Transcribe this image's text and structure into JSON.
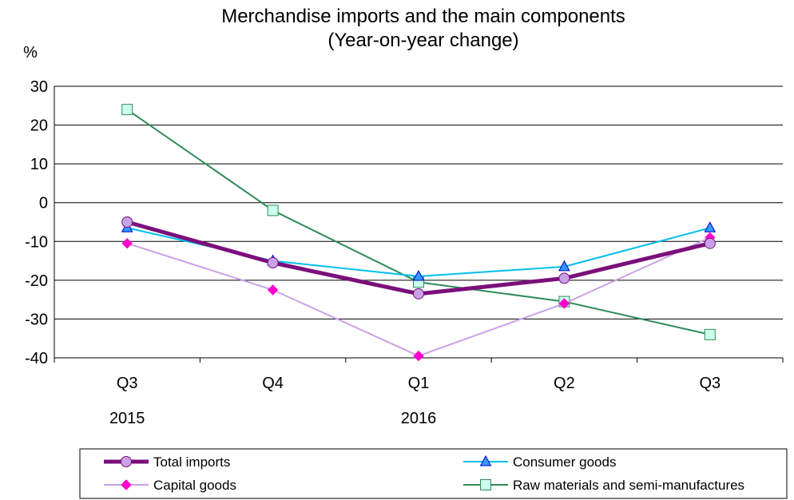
{
  "chart_data": {
    "type": "line",
    "title_line1": "Merchandise imports and the main components",
    "title_line2": "(Year-on-year change)",
    "ylabel": "%",
    "ylim": [
      -40,
      30
    ],
    "yticks": [
      30,
      20,
      10,
      0,
      -10,
      -20,
      -30,
      -40
    ],
    "categories": [
      "Q3",
      "Q4",
      "Q1",
      "Q2",
      "Q3"
    ],
    "year_labels": [
      {
        "label": "2015",
        "category_index": 0
      },
      {
        "label": "2016",
        "category_index": 2
      }
    ],
    "grid": true,
    "legend_position": "bottom",
    "series": [
      {
        "name": "Total imports",
        "values": [
          -5,
          -15.5,
          -23.5,
          -19.5,
          -10.5
        ],
        "color": "#7B0F7B",
        "marker": "circle",
        "marker_fill": "#C8A2E6",
        "line_width": 5
      },
      {
        "name": "Consumer goods",
        "values": [
          -6.5,
          -15,
          -19,
          -16.5,
          -6.5
        ],
        "color": "#00BFF0",
        "marker": "triangle",
        "marker_fill": "#3399FF",
        "line_width": 2
      },
      {
        "name": "Capital goods",
        "values": [
          -10.5,
          -22.5,
          -39.5,
          -26,
          -9
        ],
        "color": "#C8A2E6",
        "marker": "diamond",
        "marker_fill": "#FF00CC",
        "line_width": 2
      },
      {
        "name": "Raw materials and semi-manufactures",
        "values": [
          24,
          -2,
          -20.5,
          -25.5,
          -34
        ],
        "color": "#2E8B57",
        "marker": "square",
        "marker_fill": "#CCFFEE",
        "line_width": 2
      }
    ]
  }
}
